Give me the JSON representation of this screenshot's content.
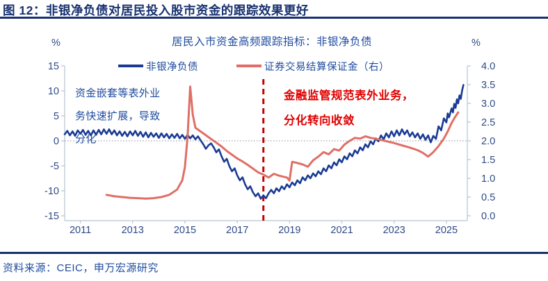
{
  "header": {
    "title": "图 12：非银净负债对居民投入股市资金的跟踪效果更好"
  },
  "colors": {
    "title_navy": "#17306e",
    "chart_text_navy": "#1e4b9e",
    "axis_text_navy": "#2e4a87",
    "note_red": "#e00000",
    "dash_red": "#c40000",
    "axis_line": "#b7c3d1",
    "zero_line": "#9aa4b0"
  },
  "notes": {
    "left": "资金嵌套等表外业务快速扩展，导致分化",
    "right": "金融监管规范表外业务，分化转向收敛"
  },
  "source": {
    "text": "资料来源：CEIC，申万宏源研究"
  },
  "chart_data": {
    "type": "line",
    "title": "居民入市资金高频跟踪指标：非银净负债",
    "legend_position": "top",
    "grid": "zero-line-only",
    "left_axis": {
      "unit": "%",
      "min": -15,
      "max": 15,
      "ticks": [
        "15",
        "10",
        "5",
        "0",
        "-5",
        "-10",
        "-15"
      ]
    },
    "right_axis": {
      "unit": "%",
      "min": 0,
      "max": 4,
      "ticks": [
        "4.0",
        "3.5",
        "3.0",
        "2.5",
        "2.0",
        "1.5",
        "1.0",
        "0.5",
        "0.0"
      ]
    },
    "x_axis": {
      "min": 2010.4,
      "max": 2025.8,
      "ticks": [
        2011,
        2013,
        2015,
        2017,
        2019,
        2021,
        2023,
        2025
      ]
    },
    "dashed_vline_x": 2018.0,
    "series": [
      {
        "name": "非银净负债",
        "axis": "left",
        "color": "#1a3b94",
        "width": 2.6,
        "points": [
          [
            2010.4,
            1.3
          ],
          [
            2010.5,
            2.0
          ],
          [
            2010.6,
            1.1
          ],
          [
            2010.7,
            1.9
          ],
          [
            2010.8,
            1.0
          ],
          [
            2010.9,
            2.1
          ],
          [
            2011.0,
            1.4
          ],
          [
            2011.1,
            2.2
          ],
          [
            2011.2,
            1.2
          ],
          [
            2011.3,
            2.0
          ],
          [
            2011.4,
            1.1
          ],
          [
            2011.5,
            2.1
          ],
          [
            2011.6,
            1.2
          ],
          [
            2011.7,
            2.2
          ],
          [
            2011.8,
            1.3
          ],
          [
            2011.9,
            2.3
          ],
          [
            2012.0,
            1.4
          ],
          [
            2012.1,
            2.3
          ],
          [
            2012.2,
            1.3
          ],
          [
            2012.3,
            2.1
          ],
          [
            2012.4,
            1.1
          ],
          [
            2012.5,
            1.9
          ],
          [
            2012.6,
            1.0
          ],
          [
            2012.7,
            1.8
          ],
          [
            2012.8,
            0.9
          ],
          [
            2012.9,
            1.9
          ],
          [
            2013.0,
            1.1
          ],
          [
            2013.1,
            2.0
          ],
          [
            2013.2,
            1.0
          ],
          [
            2013.3,
            1.8
          ],
          [
            2013.4,
            0.8
          ],
          [
            2013.5,
            1.7
          ],
          [
            2013.6,
            0.7
          ],
          [
            2013.7,
            1.6
          ],
          [
            2013.8,
            0.8
          ],
          [
            2013.9,
            1.5
          ],
          [
            2014.0,
            0.6
          ],
          [
            2014.1,
            1.5
          ],
          [
            2014.2,
            0.7
          ],
          [
            2014.3,
            1.4
          ],
          [
            2014.4,
            0.5
          ],
          [
            2014.5,
            1.3
          ],
          [
            2014.6,
            0.6
          ],
          [
            2014.7,
            1.4
          ],
          [
            2014.8,
            0.5
          ],
          [
            2014.9,
            1.2
          ],
          [
            2015.0,
            0.4
          ],
          [
            2015.1,
            1.2
          ],
          [
            2015.2,
            0.5
          ],
          [
            2015.3,
            1.1
          ],
          [
            2015.4,
            0.3
          ],
          [
            2015.5,
            0.9
          ],
          [
            2015.6,
            0.1
          ],
          [
            2015.7,
            -0.7
          ],
          [
            2015.8,
            -1.6
          ],
          [
            2015.9,
            -0.9
          ],
          [
            2016.0,
            -0.5
          ],
          [
            2016.1,
            -1.3
          ],
          [
            2016.2,
            -2.3
          ],
          [
            2016.3,
            -1.7
          ],
          [
            2016.4,
            -3.1
          ],
          [
            2016.5,
            -4.2
          ],
          [
            2016.6,
            -3.6
          ],
          [
            2016.7,
            -5.1
          ],
          [
            2016.8,
            -6.1
          ],
          [
            2016.9,
            -5.5
          ],
          [
            2017.0,
            -6.9
          ],
          [
            2017.1,
            -7.9
          ],
          [
            2017.2,
            -7.3
          ],
          [
            2017.3,
            -8.7
          ],
          [
            2017.4,
            -9.7
          ],
          [
            2017.5,
            -9.1
          ],
          [
            2017.6,
            -10.3
          ],
          [
            2017.7,
            -11.1
          ],
          [
            2017.8,
            -10.5
          ],
          [
            2017.9,
            -11.6
          ],
          [
            2018.0,
            -10.9
          ],
          [
            2018.1,
            -11.5
          ],
          [
            2018.2,
            -10.5
          ],
          [
            2018.3,
            -9.8
          ],
          [
            2018.4,
            -10.5
          ],
          [
            2018.5,
            -9.5
          ],
          [
            2018.6,
            -10.1
          ],
          [
            2018.7,
            -9.1
          ],
          [
            2018.8,
            -9.7
          ],
          [
            2018.9,
            -8.7
          ],
          [
            2019.0,
            -9.3
          ],
          [
            2019.1,
            -8.3
          ],
          [
            2019.2,
            -8.9
          ],
          [
            2019.3,
            -7.9
          ],
          [
            2019.4,
            -8.5
          ],
          [
            2019.5,
            -7.3
          ],
          [
            2019.6,
            -7.9
          ],
          [
            2019.7,
            -6.9
          ],
          [
            2019.8,
            -7.5
          ],
          [
            2019.9,
            -6.5
          ],
          [
            2020.0,
            -7.1
          ],
          [
            2020.1,
            -6.1
          ],
          [
            2020.2,
            -6.7
          ],
          [
            2020.3,
            -5.5
          ],
          [
            2020.4,
            -6.1
          ],
          [
            2020.5,
            -4.9
          ],
          [
            2020.6,
            -5.5
          ],
          [
            2020.7,
            -4.3
          ],
          [
            2020.8,
            -4.9
          ],
          [
            2020.9,
            -3.7
          ],
          [
            2021.0,
            -4.3
          ],
          [
            2021.1,
            -3.1
          ],
          [
            2021.2,
            -3.7
          ],
          [
            2021.3,
            -2.5
          ],
          [
            2021.4,
            -3.1
          ],
          [
            2021.5,
            -1.9
          ],
          [
            2021.6,
            -2.5
          ],
          [
            2021.7,
            -1.3
          ],
          [
            2021.8,
            -1.9
          ],
          [
            2021.9,
            -0.7
          ],
          [
            2022.0,
            -1.3
          ],
          [
            2022.1,
            -0.1
          ],
          [
            2022.2,
            -0.7
          ],
          [
            2022.3,
            0.5
          ],
          [
            2022.4,
            -0.1
          ],
          [
            2022.5,
            1.1
          ],
          [
            2022.6,
            0.3
          ],
          [
            2022.7,
            1.5
          ],
          [
            2022.8,
            0.7
          ],
          [
            2022.9,
            1.9
          ],
          [
            2023.0,
            0.9
          ],
          [
            2023.1,
            2.1
          ],
          [
            2023.2,
            1.1
          ],
          [
            2023.3,
            2.3
          ],
          [
            2023.4,
            1.3
          ],
          [
            2023.5,
            2.1
          ],
          [
            2023.6,
            0.9
          ],
          [
            2023.7,
            1.7
          ],
          [
            2023.8,
            0.7
          ],
          [
            2023.9,
            1.5
          ],
          [
            2024.0,
            0.4
          ],
          [
            2024.1,
            1.3
          ],
          [
            2024.2,
            0.2
          ],
          [
            2024.3,
            1.1
          ],
          [
            2024.4,
            -0.3
          ],
          [
            2024.5,
            1.0
          ],
          [
            2024.6,
            0.4
          ],
          [
            2024.7,
            2.9
          ],
          [
            2024.8,
            2.1
          ],
          [
            2024.9,
            4.5
          ],
          [
            2025.0,
            3.7
          ],
          [
            2025.05,
            5.5
          ],
          [
            2025.1,
            4.7
          ],
          [
            2025.2,
            6.5
          ],
          [
            2025.25,
            5.7
          ],
          [
            2025.3,
            7.4
          ],
          [
            2025.35,
            6.6
          ],
          [
            2025.4,
            8.3
          ],
          [
            2025.45,
            7.5
          ],
          [
            2025.5,
            9.1
          ],
          [
            2025.55,
            8.4
          ],
          [
            2025.6,
            10.1
          ],
          [
            2025.65,
            11.2
          ]
        ]
      },
      {
        "name": "证券交易结算保证金（右）",
        "axis": "right",
        "color": "#e06e66",
        "width": 3,
        "points": [
          [
            2012.0,
            0.56
          ],
          [
            2012.3,
            0.52
          ],
          [
            2012.6,
            0.5
          ],
          [
            2012.9,
            0.48
          ],
          [
            2013.2,
            0.47
          ],
          [
            2013.5,
            0.46
          ],
          [
            2013.8,
            0.47
          ],
          [
            2014.1,
            0.5
          ],
          [
            2014.4,
            0.56
          ],
          [
            2014.7,
            0.7
          ],
          [
            2014.9,
            0.95
          ],
          [
            2015.0,
            1.3
          ],
          [
            2015.1,
            2.1
          ],
          [
            2015.2,
            3.45
          ],
          [
            2015.3,
            2.7
          ],
          [
            2015.4,
            2.35
          ],
          [
            2015.6,
            2.25
          ],
          [
            2015.8,
            2.15
          ],
          [
            2016.0,
            2.05
          ],
          [
            2016.2,
            1.95
          ],
          [
            2016.4,
            1.85
          ],
          [
            2016.6,
            1.73
          ],
          [
            2016.8,
            1.63
          ],
          [
            2017.0,
            1.53
          ],
          [
            2017.2,
            1.45
          ],
          [
            2017.4,
            1.36
          ],
          [
            2017.6,
            1.26
          ],
          [
            2017.8,
            1.16
          ],
          [
            2018.0,
            1.1
          ],
          [
            2018.2,
            1.02
          ],
          [
            2018.4,
            1.12
          ],
          [
            2018.6,
            1.07
          ],
          [
            2018.9,
            1.02
          ],
          [
            2019.0,
            0.94
          ],
          [
            2019.1,
            1.44
          ],
          [
            2019.3,
            1.41
          ],
          [
            2019.5,
            1.37
          ],
          [
            2019.7,
            1.31
          ],
          [
            2019.9,
            1.48
          ],
          [
            2020.1,
            1.58
          ],
          [
            2020.3,
            1.7
          ],
          [
            2020.5,
            1.64
          ],
          [
            2020.7,
            1.78
          ],
          [
            2020.9,
            1.74
          ],
          [
            2021.1,
            1.9
          ],
          [
            2021.3,
            2.0
          ],
          [
            2021.5,
            2.08
          ],
          [
            2021.7,
            2.06
          ],
          [
            2021.9,
            2.12
          ],
          [
            2022.1,
            2.08
          ],
          [
            2022.4,
            2.04
          ],
          [
            2022.7,
            1.99
          ],
          [
            2023.0,
            1.94
          ],
          [
            2023.3,
            1.88
          ],
          [
            2023.6,
            1.82
          ],
          [
            2023.9,
            1.75
          ],
          [
            2024.1,
            1.68
          ],
          [
            2024.3,
            1.58
          ],
          [
            2024.5,
            1.7
          ],
          [
            2024.7,
            1.86
          ],
          [
            2024.9,
            2.06
          ],
          [
            2025.05,
            2.25
          ],
          [
            2025.2,
            2.48
          ],
          [
            2025.3,
            2.6
          ],
          [
            2025.45,
            2.76
          ]
        ]
      }
    ]
  }
}
